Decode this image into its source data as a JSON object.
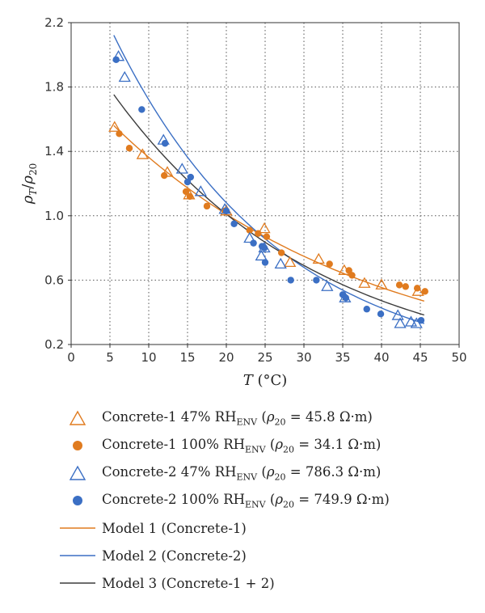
{
  "chart_data": {
    "type": "scatter",
    "xlabel_main": "T",
    "xlabel_unit": " (°C)",
    "ylabel_parts": {
      "rho": "ρ",
      "sub1": "T",
      "slash": "/",
      "sub2": "20"
    },
    "xlim": [
      0,
      50
    ],
    "ylim": [
      0.2,
      2.2
    ],
    "x_ticks": [
      0,
      5,
      10,
      15,
      20,
      25,
      30,
      35,
      40,
      45,
      50
    ],
    "x_tick_labels": [
      "0",
      "5",
      "10",
      "15",
      "20",
      "25",
      "30",
      "35",
      "40",
      "45",
      "50"
    ],
    "y_ticks": [
      0.2,
      0.6,
      1.0,
      1.4,
      1.8,
      2.2
    ],
    "y_tick_labels": [
      "0.2",
      "0.6",
      "1.0",
      "1.4",
      "1.8",
      "2.2"
    ],
    "grid": "dotted",
    "legend_position": "below",
    "series": [
      {
        "name_main": "Concrete-1 47% RH",
        "name_sub": "ENV",
        "name_paren": " (",
        "name_rho": "ρ",
        "name_rho_sub": "20",
        "name_value": " = 45.8 Ω·m)",
        "marker": "triangle-open",
        "color": "#e07b1f",
        "x": [
          5.6,
          9.2,
          12.4,
          15.2,
          20.0,
          24.9,
          28.2,
          31.9,
          35.2,
          37.8,
          40.0,
          44.7
        ],
        "y": [
          1.55,
          1.38,
          1.27,
          1.13,
          1.03,
          0.92,
          0.71,
          0.73,
          0.66,
          0.58,
          0.57,
          0.53
        ]
      },
      {
        "name_main": "Concrete-1 100% RH",
        "name_sub": "ENV",
        "name_paren": " (",
        "name_rho": "ρ",
        "name_rho_sub": "20",
        "name_value": " = 34.1 Ω·m)",
        "marker": "circle-filled",
        "color": "#e07b1f",
        "x": [
          6.2,
          7.5,
          12.0,
          14.8,
          15.3,
          17.5,
          19.8,
          23.0,
          24.1,
          25.2,
          27.1,
          33.3,
          35.8,
          36.2,
          42.3,
          43.1,
          44.6,
          45.6
        ],
        "y": [
          1.51,
          1.42,
          1.25,
          1.15,
          1.12,
          1.06,
          1.03,
          0.91,
          0.89,
          0.87,
          0.77,
          0.7,
          0.66,
          0.63,
          0.57,
          0.56,
          0.55,
          0.53
        ]
      },
      {
        "name_main": "Concrete-2 47% RH",
        "name_sub": "ENV",
        "name_paren": " (",
        "name_rho": "ρ",
        "name_rho_sub": "20",
        "name_value": " = 786.3 Ω·m)",
        "marker": "triangle-open",
        "color": "#3b6fc4",
        "x": [
          6.1,
          6.9,
          11.9,
          14.3,
          16.7,
          19.8,
          23.0,
          24.5,
          24.9,
          27.0,
          33.0,
          35.3,
          42.1,
          42.4,
          43.8,
          44.5
        ],
        "y": [
          1.99,
          1.86,
          1.47,
          1.29,
          1.15,
          1.04,
          0.86,
          0.75,
          0.8,
          0.7,
          0.56,
          0.49,
          0.38,
          0.33,
          0.34,
          0.33
        ]
      },
      {
        "name_main": "Concrete-2 100% RH",
        "name_sub": "ENV",
        "name_paren": " (",
        "name_rho": "ρ",
        "name_rho_sub": "20",
        "name_value": " = 749.9 Ω·m)",
        "marker": "circle-filled",
        "color": "#3b6fc4",
        "x": [
          5.8,
          9.1,
          12.1,
          15.0,
          15.4,
          20.0,
          21.0,
          23.5,
          24.6,
          24.9,
          25.0,
          28.3,
          31.6,
          35.0,
          35.4,
          38.1,
          39.9,
          45.1
        ],
        "y": [
          1.97,
          1.66,
          1.45,
          1.21,
          1.24,
          1.03,
          0.95,
          0.83,
          0.81,
          0.8,
          0.71,
          0.6,
          0.6,
          0.51,
          0.49,
          0.42,
          0.39,
          0.35
        ]
      }
    ],
    "models": [
      {
        "name": "Model 1 (Concrete-1)",
        "color": "#e07b1f",
        "x": [
          5.5,
          45.5
        ],
        "fn": {
          "a": 1.84,
          "b": -0.03
        }
      },
      {
        "name": "Model 2 (Concrete-2)",
        "color": "#3b6fc4",
        "x": [
          5.5,
          45.5
        ],
        "fn": {
          "a": 2.74,
          "b": -0.0465
        }
      },
      {
        "name": "Model 3 (Concrete-1 + 2)",
        "color": "#3c3c3c",
        "x": [
          5.5,
          45.5
        ],
        "fn": {
          "a": 2.16,
          "b": -0.038
        }
      }
    ]
  }
}
